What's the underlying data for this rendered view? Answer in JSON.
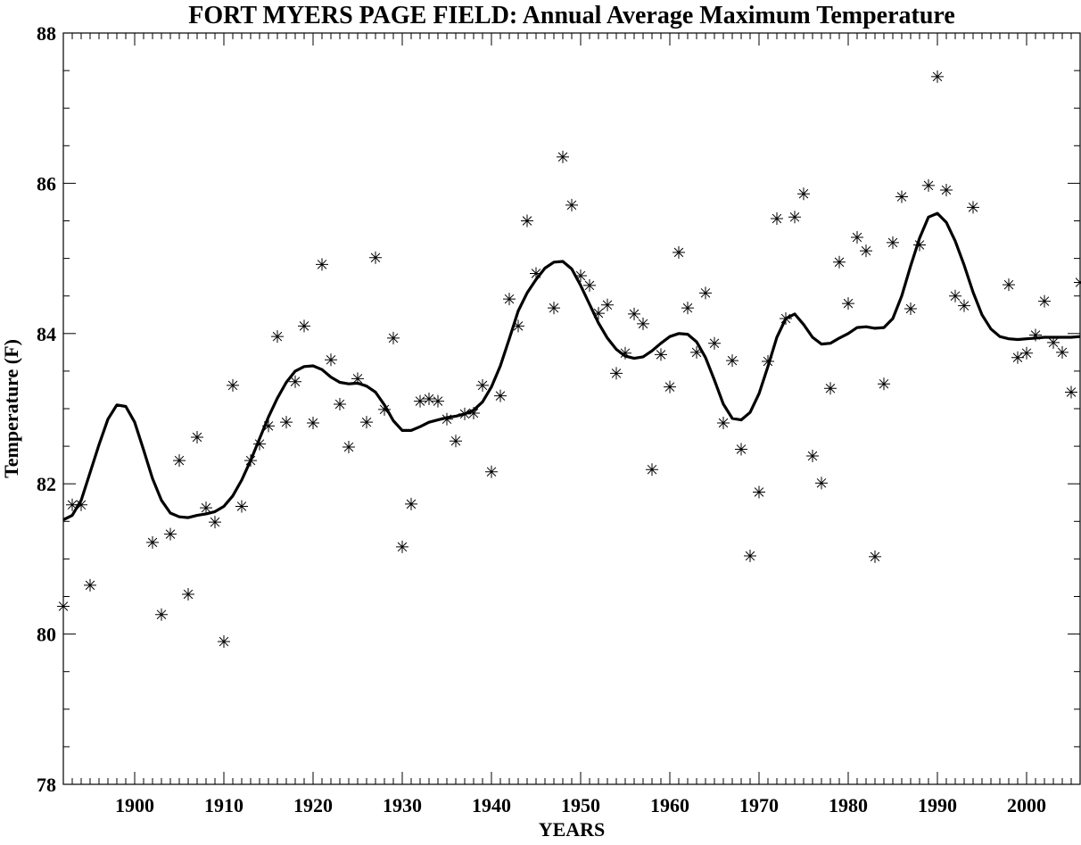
{
  "chart_data": {
    "type": "scatter",
    "title": "FORT MYERS PAGE FIELD: Annual Average Maximum Temperature",
    "xlabel": "YEARS",
    "ylabel": "Temperature (F)",
    "xlim": [
      1892,
      2006
    ],
    "ylim": [
      78,
      88
    ],
    "xticks": [
      1900,
      1910,
      1920,
      1930,
      1940,
      1950,
      1960,
      1970,
      1980,
      1990,
      2000
    ],
    "yticks": [
      78,
      80,
      82,
      84,
      86,
      88
    ],
    "grid": false,
    "colors": {
      "marks": "#000000",
      "background": "#ffffff"
    },
    "series": [
      {
        "marker": "asterisk",
        "x": [
          1892,
          1893,
          1894,
          1895,
          1902,
          1903,
          1904,
          1905,
          1906,
          1907,
          1908,
          1909,
          1910,
          1911,
          1912,
          1913,
          1914,
          1915,
          1916,
          1917,
          1918,
          1919,
          1920,
          1921,
          1922,
          1923,
          1924,
          1925,
          1926,
          1927,
          1928,
          1929,
          1930,
          1931,
          1932,
          1933,
          1934,
          1935,
          1936,
          1937,
          1938,
          1939,
          1940,
          1941,
          1942,
          1943,
          1944,
          1945,
          1947,
          1948,
          1949,
          1950,
          1951,
          1952,
          1953,
          1954,
          1955,
          1956,
          1957,
          1958,
          1959,
          1960,
          1961,
          1962,
          1963,
          1964,
          1965,
          1966,
          1967,
          1968,
          1969,
          1970,
          1971,
          1972,
          1973,
          1974,
          1975,
          1976,
          1977,
          1978,
          1979,
          1980,
          1981,
          1982,
          1983,
          1984,
          1985,
          1986,
          1987,
          1988,
          1989,
          1990,
          1991,
          1992,
          1993,
          1994,
          1998,
          1999,
          2000,
          2001,
          2002,
          2003,
          2004,
          2005,
          2006
        ],
        "y": [
          80.37,
          81.72,
          81.72,
          80.65,
          81.22,
          80.26,
          81.33,
          82.31,
          80.53,
          82.62,
          81.68,
          81.49,
          79.9,
          83.31,
          81.7,
          82.31,
          82.53,
          82.77,
          83.96,
          82.82,
          83.36,
          84.1,
          82.81,
          84.92,
          83.65,
          83.06,
          82.49,
          83.4,
          82.82,
          85.01,
          82.99,
          83.94,
          81.16,
          81.73,
          83.1,
          83.13,
          83.1,
          82.86,
          82.57,
          82.93,
          82.94,
          83.31,
          82.16,
          83.17,
          84.46,
          84.1,
          85.5,
          84.8,
          84.34,
          86.35,
          85.71,
          84.77,
          84.64,
          84.27,
          84.38,
          83.47,
          83.74,
          84.26,
          84.13,
          82.19,
          83.72,
          83.29,
          85.08,
          84.34,
          83.75,
          84.54,
          83.87,
          82.81,
          83.64,
          82.46,
          81.04,
          81.89,
          83.63,
          85.53,
          84.2,
          85.55,
          85.86,
          82.37,
          82.01,
          83.27,
          84.95,
          84.4,
          85.28,
          85.1,
          81.03,
          83.33,
          85.21,
          85.82,
          84.33,
          85.18,
          85.97,
          87.42,
          85.91,
          84.5,
          84.37,
          85.68,
          84.65,
          83.68,
          83.74,
          83.98,
          84.43,
          83.88,
          83.75,
          83.22,
          84.68
        ]
      },
      {
        "marker": "line",
        "x": [
          1892,
          1893,
          1894,
          1895,
          1896,
          1897,
          1898,
          1899,
          1900,
          1901,
          1902,
          1903,
          1904,
          1905,
          1906,
          1907,
          1908,
          1909,
          1910,
          1911,
          1912,
          1913,
          1914,
          1915,
          1916,
          1917,
          1918,
          1919,
          1920,
          1921,
          1922,
          1923,
          1924,
          1925,
          1926,
          1927,
          1928,
          1929,
          1930,
          1931,
          1932,
          1933,
          1934,
          1935,
          1936,
          1937,
          1938,
          1939,
          1940,
          1941,
          1942,
          1943,
          1944,
          1945,
          1946,
          1947,
          1948,
          1949,
          1950,
          1951,
          1952,
          1953,
          1954,
          1955,
          1956,
          1957,
          1958,
          1959,
          1960,
          1961,
          1962,
          1963,
          1964,
          1965,
          1966,
          1967,
          1968,
          1969,
          1970,
          1971,
          1972,
          1973,
          1974,
          1975,
          1976,
          1977,
          1978,
          1979,
          1980,
          1981,
          1982,
          1983,
          1984,
          1985,
          1986,
          1987,
          1988,
          1989,
          1990,
          1991,
          1992,
          1993,
          1994,
          1995,
          1996,
          1997,
          1998,
          1999,
          2000,
          2001,
          2002,
          2003,
          2004,
          2005,
          2006
        ],
        "y": [
          81.52,
          81.58,
          81.78,
          82.15,
          82.52,
          82.86,
          83.05,
          83.03,
          82.82,
          82.45,
          82.07,
          81.78,
          81.61,
          81.56,
          81.55,
          81.58,
          81.6,
          81.63,
          81.7,
          81.84,
          82.05,
          82.31,
          82.6,
          82.89,
          83.14,
          83.35,
          83.5,
          83.56,
          83.57,
          83.52,
          83.42,
          83.35,
          83.33,
          83.34,
          83.3,
          83.22,
          83.05,
          82.84,
          82.71,
          82.71,
          82.76,
          82.82,
          82.85,
          82.88,
          82.9,
          82.93,
          82.98,
          83.09,
          83.29,
          83.57,
          83.93,
          84.3,
          84.54,
          84.72,
          84.87,
          84.95,
          84.96,
          84.86,
          84.64,
          84.39,
          84.14,
          83.94,
          83.79,
          83.7,
          83.67,
          83.69,
          83.77,
          83.87,
          83.96,
          84.0,
          83.99,
          83.89,
          83.68,
          83.38,
          83.06,
          82.87,
          82.85,
          82.95,
          83.2,
          83.56,
          83.95,
          84.2,
          84.26,
          84.12,
          83.95,
          83.86,
          83.87,
          83.94,
          84.0,
          84.08,
          84.09,
          84.07,
          84.08,
          84.2,
          84.5,
          84.9,
          85.27,
          85.55,
          85.6,
          85.48,
          85.23,
          84.91,
          84.55,
          84.25,
          84.06,
          83.96,
          83.93,
          83.92,
          83.93,
          83.94,
          83.95,
          83.95,
          83.95,
          83.95,
          83.96
        ]
      }
    ]
  }
}
